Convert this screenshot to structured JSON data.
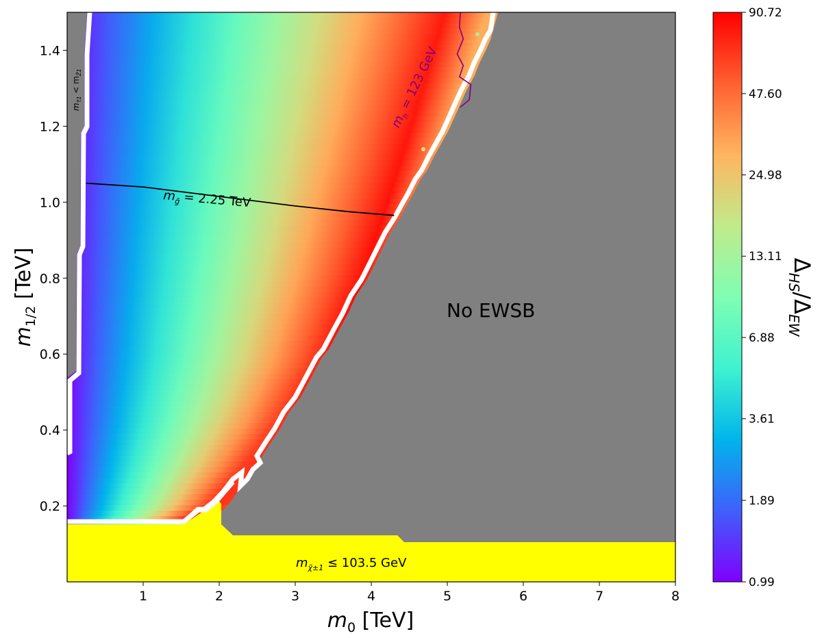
{
  "chart_data": {
    "type": "heatmap",
    "title": "",
    "xlabel_main": "m",
    "xlabel_sub": "0",
    "xlabel_unit": " [TeV]",
    "ylabel_main": "m",
    "ylabel_sub": "1/2",
    "ylabel_unit": " [TeV]",
    "xlim": [
      0,
      8
    ],
    "ylim": [
      0,
      1.5
    ],
    "xticks": [
      1,
      2,
      3,
      4,
      5,
      6,
      7,
      8
    ],
    "yticks": [
      0.2,
      0.4,
      0.6,
      0.8,
      1.0,
      1.2,
      1.4
    ],
    "xtick_labels": [
      "1",
      "2",
      "3",
      "4",
      "5",
      "6",
      "7",
      "8"
    ],
    "ytick_labels": [
      "0.2",
      "0.4",
      "0.6",
      "0.8",
      "1.0",
      "1.2",
      "1.4"
    ],
    "colorbar": {
      "label": "ΔHS/ΔEW",
      "label_main_1": "Δ",
      "label_sub_1": "HS",
      "label_sep": "/",
      "label_main_2": "Δ",
      "label_sub_2": "EW",
      "scale": "log",
      "min": 0.99,
      "max": 90.72,
      "ticks": [
        0.99,
        1.89,
        3.61,
        6.88,
        13.11,
        24.98,
        47.6,
        90.72
      ],
      "tick_labels": [
        "0.99",
        "1.89",
        "3.61",
        "6.88",
        "13.11",
        "24.98",
        "47.60",
        "90.72"
      ],
      "colors": [
        "#7f00ff",
        "#3f60fb",
        "#00b5eb",
        "#3ff2d0",
        "#7ffeb3",
        "#c0eb8b",
        "#ffb560",
        "#ff6030",
        "#ff0000"
      ]
    },
    "regions": [
      {
        "name": "No EWSB",
        "label": "No EWSB",
        "color": "#808080"
      },
      {
        "name": "chargino LEP2 bound",
        "label_prefix": "m",
        "label_sub": "χ̃±1",
        "label_suffix": " ≤ 103.5 GeV",
        "color": "#ffff00"
      },
      {
        "name": "stau LSP",
        "label_prefix": "m",
        "label_sub1": "τ̃1",
        "label_mid": " < m",
        "label_sub2": "Z̃1",
        "color": "#808080"
      }
    ],
    "contours": [
      {
        "name": "gluino mass",
        "label_prefix": "m",
        "label_sub": "g̃",
        "label_suffix": " = 2.25 TeV",
        "color": "#000000",
        "x": [
          0.25,
          1.0,
          2.0,
          3.0,
          3.7,
          4.3
        ],
        "y": [
          1.05,
          1.04,
          1.015,
          0.99,
          0.975,
          0.965
        ]
      },
      {
        "name": "higgs mass",
        "label_prefix": "m",
        "label_sub": "h",
        "label_suffix": " = 123 GeV",
        "color": "#800080",
        "x": [
          5.17,
          5.16,
          5.21,
          5.13,
          5.21,
          5.16,
          5.31,
          5.29,
          5.17
        ],
        "y": [
          1.5,
          1.46,
          1.43,
          1.39,
          1.36,
          1.33,
          1.31,
          1.27,
          1.25
        ]
      }
    ],
    "ridge": {
      "x": [
        1.6,
        2.0,
        2.5,
        3.0,
        3.5,
        4.0,
        4.5,
        5.0
      ],
      "y": [
        0.16,
        0.2,
        0.3,
        0.42,
        0.58,
        0.82,
        1.1,
        1.4
      ]
    }
  }
}
